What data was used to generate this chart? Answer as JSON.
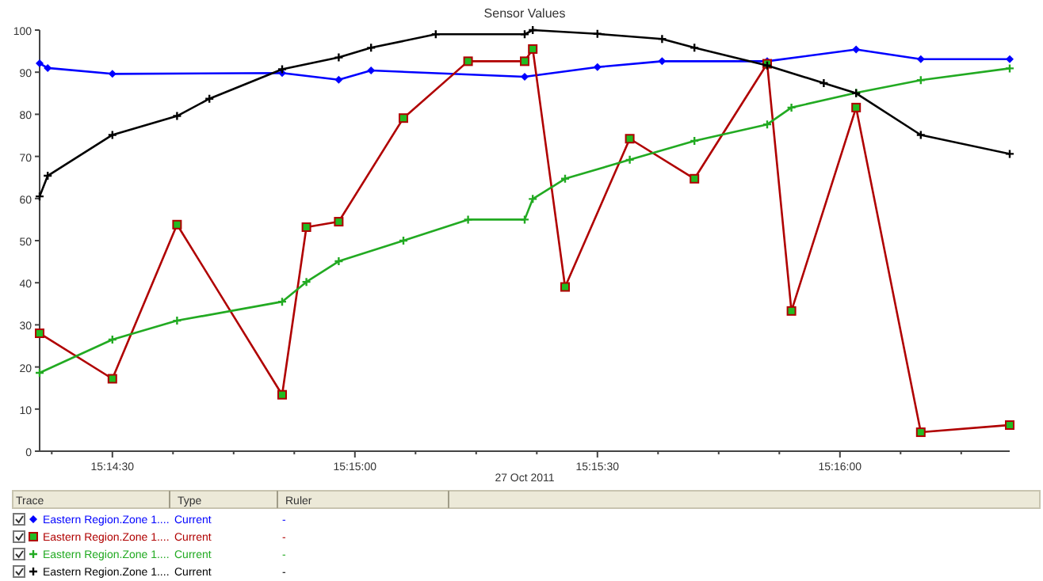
{
  "chart_data": {
    "type": "line",
    "title": "Sensor Values",
    "xlabel": "27 Oct 2011",
    "x": [
      "2011-10-27T15:14:21",
      "2011-10-27T15:14:22",
      "2011-10-27T15:14:30",
      "2011-10-27T15:14:38",
      "2011-10-27T15:14:42",
      "2011-10-27T15:14:51",
      "2011-10-27T15:14:54",
      "2011-10-27T15:14:58",
      "2011-10-27T15:15:02",
      "2011-10-27T15:15:06",
      "2011-10-27T15:15:10",
      "2011-10-27T15:15:14",
      "2011-10-27T15:15:21",
      "2011-10-27T15:15:22",
      "2011-10-27T15:15:26",
      "2011-10-27T15:15:30",
      "2011-10-27T15:15:34",
      "2011-10-27T15:15:38",
      "2011-10-27T15:15:42",
      "2011-10-27T15:15:51",
      "2011-10-27T15:15:54",
      "2011-10-27T15:15:58",
      "2011-10-27T15:16:02",
      "2011-10-27T15:16:10",
      "2011-10-27T15:16:21"
    ],
    "series": [
      {
        "name": "Eastern Region.Zone 1....",
        "color": "#0000ff",
        "marker": "diamond",
        "values": [
          92.1,
          91,
          89.6,
          null,
          null,
          89.8,
          null,
          88.2,
          90.4,
          null,
          null,
          null,
          88.9,
          null,
          null,
          91.2,
          null,
          92.6,
          null,
          92.6,
          null,
          null,
          95.4,
          93.1,
          93.1
        ]
      },
      {
        "name": "Eastern Region.Zone 1....",
        "color": "#b00000",
        "marker": "square",
        "values": [
          28,
          null,
          17.2,
          53.8,
          null,
          13.4,
          53.2,
          54.5,
          null,
          79.1,
          null,
          92.6,
          92.6,
          95.5,
          39,
          null,
          74.2,
          null,
          64.7,
          92,
          33.3,
          null,
          81.6,
          4.5,
          6.2
        ]
      },
      {
        "name": "Eastern Region.Zone 1....",
        "color": "#22aa22",
        "marker": "cross",
        "values": [
          18.6,
          null,
          26.5,
          31,
          null,
          35.5,
          40.2,
          45.1,
          null,
          50,
          null,
          55,
          55,
          59.9,
          64.7,
          null,
          69.2,
          null,
          73.7,
          77.6,
          81.6,
          null,
          85.1,
          88.1,
          90.9
        ]
      },
      {
        "name": "Eastern Region.Zone 1....",
        "color": "#000000",
        "marker": "cross",
        "values": [
          60.5,
          65.4,
          75.1,
          79.6,
          83.7,
          90.7,
          null,
          93.5,
          95.8,
          null,
          99,
          null,
          99,
          100,
          null,
          99.1,
          null,
          97.9,
          95.8,
          91.6,
          null,
          87.4,
          85,
          75.1,
          70.6
        ]
      }
    ],
    "xlim": [
      "2011-10-27T15:14:21",
      "2011-10-27T15:16:21"
    ],
    "xticks": [
      {
        "value": "2011-10-27T15:14:22.5",
        "label": null
      },
      {
        "value": "2011-10-27T15:14:30",
        "label": "15:14:30"
      },
      {
        "value": "2011-10-27T15:14:37.5",
        "label": null
      },
      {
        "value": "2011-10-27T15:14:45",
        "label": null
      },
      {
        "value": "2011-10-27T15:14:52.5",
        "label": null
      },
      {
        "value": "2011-10-27T15:15:00",
        "label": "15:15:00"
      },
      {
        "value": "2011-10-27T15:15:07.5",
        "label": null
      },
      {
        "value": "2011-10-27T15:15:15",
        "label": null
      },
      {
        "value": "2011-10-27T15:15:22.5",
        "label": null
      },
      {
        "value": "2011-10-27T15:15:30",
        "label": "15:15:30"
      },
      {
        "value": "2011-10-27T15:15:37.5",
        "label": null
      },
      {
        "value": "2011-10-27T15:15:45",
        "label": null
      },
      {
        "value": "2011-10-27T15:15:52.5",
        "label": null
      },
      {
        "value": "2011-10-27T15:16:00",
        "label": "15:16:00"
      },
      {
        "value": "2011-10-27T15:16:07.5",
        "label": null
      },
      {
        "value": "2011-10-27T15:16:15",
        "label": null
      }
    ],
    "ylim": [
      0,
      100
    ],
    "yticks": [
      0,
      10,
      20,
      30,
      40,
      50,
      60,
      70,
      80,
      90,
      100
    ],
    "grid": false,
    "legend": "bottom",
    "annotations": [
      "Trace",
      "Type",
      "Ruler",
      "Current",
      "-",
      "Current",
      "-",
      "Current",
      "-",
      "Current",
      "-"
    ]
  }
}
